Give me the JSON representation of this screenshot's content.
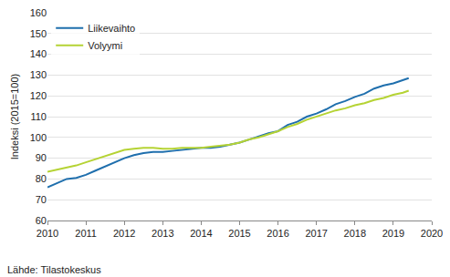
{
  "chart_data": {
    "type": "line",
    "y_label": "Indeksi (2015=100)",
    "annotations": [
      "Lähde: Tilastokeskus"
    ],
    "x": [
      2010.0,
      2010.25,
      2010.5,
      2010.75,
      2011.0,
      2011.25,
      2011.5,
      2011.75,
      2012.0,
      2012.25,
      2012.5,
      2012.75,
      2013.0,
      2013.25,
      2013.5,
      2013.75,
      2014.0,
      2014.25,
      2014.5,
      2014.75,
      2015.0,
      2015.25,
      2015.5,
      2015.75,
      2016.0,
      2016.25,
      2016.5,
      2016.75,
      2017.0,
      2017.25,
      2017.5,
      2017.75,
      2018.0,
      2018.25,
      2018.5,
      2018.75,
      2019.0,
      2019.25,
      2019.4
    ],
    "series": [
      {
        "name": "Liikevaihto",
        "color": "#1f6fad",
        "values": [
          76,
          78,
          80,
          80.5,
          82,
          84,
          86,
          88,
          90,
          91.5,
          92.5,
          93,
          93,
          93.5,
          94,
          94.5,
          95,
          95,
          95.5,
          96.5,
          97.5,
          99,
          100.5,
          102,
          103,
          106,
          107.5,
          110,
          111.5,
          113.5,
          116,
          117.5,
          119.5,
          121,
          123.5,
          125,
          126,
          127.5,
          128.5
        ]
      },
      {
        "name": "Volyymi",
        "color": "#b5d334",
        "values": [
          83.5,
          84.5,
          85.5,
          86.5,
          88,
          89.5,
          91,
          92.5,
          94,
          94.5,
          95,
          95,
          94.5,
          94.5,
          95,
          95,
          95,
          95.5,
          96,
          96.5,
          97.5,
          99,
          100,
          101.5,
          103,
          105,
          106.5,
          108.5,
          110,
          111.5,
          113,
          114,
          115.5,
          116.5,
          118,
          119,
          120.5,
          121.5,
          122.5
        ]
      }
    ],
    "xlim": [
      2010,
      2020
    ],
    "xticks": [
      2010,
      2011,
      2012,
      2013,
      2014,
      2015,
      2016,
      2017,
      2018,
      2019,
      2020
    ],
    "ylim": [
      60,
      160
    ],
    "yticks": [
      60,
      70,
      80,
      90,
      100,
      110,
      120,
      130,
      140,
      150,
      160
    ],
    "grid": true,
    "legend": "top-left"
  }
}
